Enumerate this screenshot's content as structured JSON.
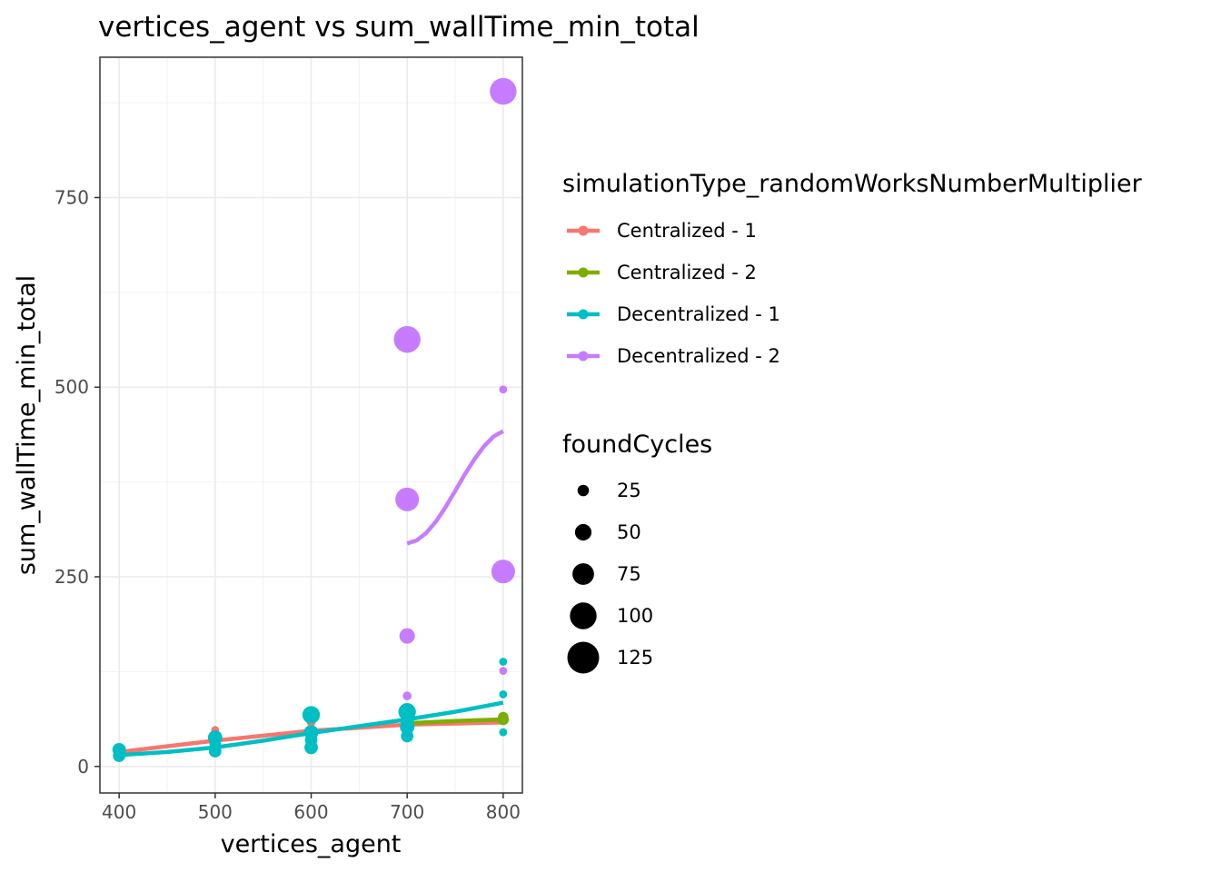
{
  "chart_data": {
    "type": "scatter",
    "title": "vertices_agent  vs  sum_wallTime_min_total",
    "xlabel": "vertices_agent",
    "ylabel": "sum_wallTime_min_total",
    "xlim": [
      380,
      820
    ],
    "ylim": [
      -35,
      935
    ],
    "x_ticks": [
      400,
      500,
      600,
      700,
      800
    ],
    "y_ticks": [
      0,
      250,
      500,
      750
    ],
    "x_tick_labels": [
      "400",
      "500",
      "600",
      "700",
      "800"
    ],
    "y_tick_labels": [
      "0",
      "250",
      "500",
      "750"
    ],
    "grid": true,
    "color_legend": {
      "title": "simulationType_randomWorksNumberMultiplier",
      "position": "right"
    },
    "size_legend": {
      "title": "foundCycles",
      "entries": [
        {
          "label": "25",
          "value": 25
        },
        {
          "label": "50",
          "value": 50
        },
        {
          "label": "75",
          "value": 75
        },
        {
          "label": "100",
          "value": 100
        },
        {
          "label": "125",
          "value": 125
        }
      ]
    },
    "series": [
      {
        "name": "Centralized - 1",
        "color": "#F8766D",
        "points": [
          {
            "x": 400,
            "y": 20,
            "size": 25
          },
          {
            "x": 500,
            "y": 48,
            "size": 8
          },
          {
            "x": 500,
            "y": 38,
            "size": 20
          },
          {
            "x": 600,
            "y": 58,
            "size": 12
          },
          {
            "x": 700,
            "y": 55,
            "size": 15
          },
          {
            "x": 800,
            "y": 62,
            "size": 15
          }
        ],
        "trend": [
          {
            "x": 400,
            "y": 19
          },
          {
            "x": 500,
            "y": 34
          },
          {
            "x": 600,
            "y": 47
          },
          {
            "x": 700,
            "y": 55
          },
          {
            "x": 800,
            "y": 58
          }
        ]
      },
      {
        "name": "Centralized - 2",
        "color": "#7CAE00",
        "points": [
          {
            "x": 700,
            "y": 58,
            "size": 20
          },
          {
            "x": 800,
            "y": 62,
            "size": 25
          },
          {
            "x": 800,
            "y": 65,
            "size": 20
          }
        ],
        "trend": [
          {
            "x": 700,
            "y": 57
          },
          {
            "x": 750,
            "y": 60
          },
          {
            "x": 800,
            "y": 62
          }
        ]
      },
      {
        "name": "Decentralized - 1",
        "color": "#00BFC4",
        "points": [
          {
            "x": 400,
            "y": 22,
            "size": 35
          },
          {
            "x": 400,
            "y": 14,
            "size": 30
          },
          {
            "x": 500,
            "y": 38,
            "size": 40
          },
          {
            "x": 500,
            "y": 20,
            "size": 30
          },
          {
            "x": 500,
            "y": 30,
            "size": 25
          },
          {
            "x": 600,
            "y": 68,
            "size": 55
          },
          {
            "x": 600,
            "y": 45,
            "size": 40
          },
          {
            "x": 600,
            "y": 25,
            "size": 35
          },
          {
            "x": 600,
            "y": 35,
            "size": 30
          },
          {
            "x": 700,
            "y": 72,
            "size": 55
          },
          {
            "x": 700,
            "y": 52,
            "size": 40
          },
          {
            "x": 700,
            "y": 40,
            "size": 30
          },
          {
            "x": 700,
            "y": 60,
            "size": 35
          },
          {
            "x": 800,
            "y": 138,
            "size": 8
          },
          {
            "x": 800,
            "y": 95,
            "size": 8
          },
          {
            "x": 800,
            "y": 45,
            "size": 8
          }
        ],
        "trend": [
          {
            "x": 400,
            "y": 15
          },
          {
            "x": 450,
            "y": 19
          },
          {
            "x": 500,
            "y": 25
          },
          {
            "x": 550,
            "y": 34
          },
          {
            "x": 600,
            "y": 44
          },
          {
            "x": 650,
            "y": 53
          },
          {
            "x": 700,
            "y": 62
          },
          {
            "x": 750,
            "y": 72
          },
          {
            "x": 800,
            "y": 84
          }
        ]
      },
      {
        "name": "Decentralized - 2",
        "color": "#C77CFF",
        "points": [
          {
            "x": 700,
            "y": 563,
            "size": 100
          },
          {
            "x": 700,
            "y": 352,
            "size": 85
          },
          {
            "x": 700,
            "y": 172,
            "size": 45
          },
          {
            "x": 700,
            "y": 93,
            "size": 12
          },
          {
            "x": 800,
            "y": 890,
            "size": 100
          },
          {
            "x": 800,
            "y": 257,
            "size": 85
          },
          {
            "x": 800,
            "y": 497,
            "size": 8
          },
          {
            "x": 800,
            "y": 126,
            "size": 8
          }
        ],
        "trend": [
          {
            "x": 700,
            "y": 294
          },
          {
            "x": 710,
            "y": 298
          },
          {
            "x": 720,
            "y": 308
          },
          {
            "x": 730,
            "y": 323
          },
          {
            "x": 740,
            "y": 342
          },
          {
            "x": 750,
            "y": 363
          },
          {
            "x": 760,
            "y": 385
          },
          {
            "x": 770,
            "y": 405
          },
          {
            "x": 780,
            "y": 422
          },
          {
            "x": 790,
            "y": 435
          },
          {
            "x": 800,
            "y": 442
          }
        ]
      }
    ]
  }
}
